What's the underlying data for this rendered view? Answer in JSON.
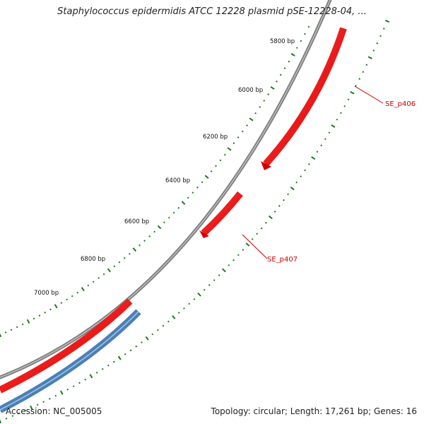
{
  "title": "Staphylococcus epidermidis ATCC 12228 plasmid pSE-12228-04, ...",
  "footer": {
    "accession": "Accession: NC_005005",
    "summary": "Topology: circular; Length: 17,261 bp; Genes: 16"
  },
  "colors": {
    "backbone": "#8a8a8a",
    "forward_gene": "#ff0000",
    "reverse_gene": "#4a7fb5",
    "ticks": "#1a7a1a",
    "gene_label": "#cc0000",
    "bp_label": "#111111"
  },
  "scale_labels": [
    "5800 bp",
    "6000 bp",
    "6200 bp",
    "6400 bp",
    "6600 bp",
    "6800 bp",
    "7000 bp"
  ],
  "genes": [
    {
      "label": "SE_p406",
      "strand": "forward",
      "track": "outer"
    },
    {
      "label": "SE_p407",
      "strand": "forward",
      "track": "inner"
    }
  ]
}
